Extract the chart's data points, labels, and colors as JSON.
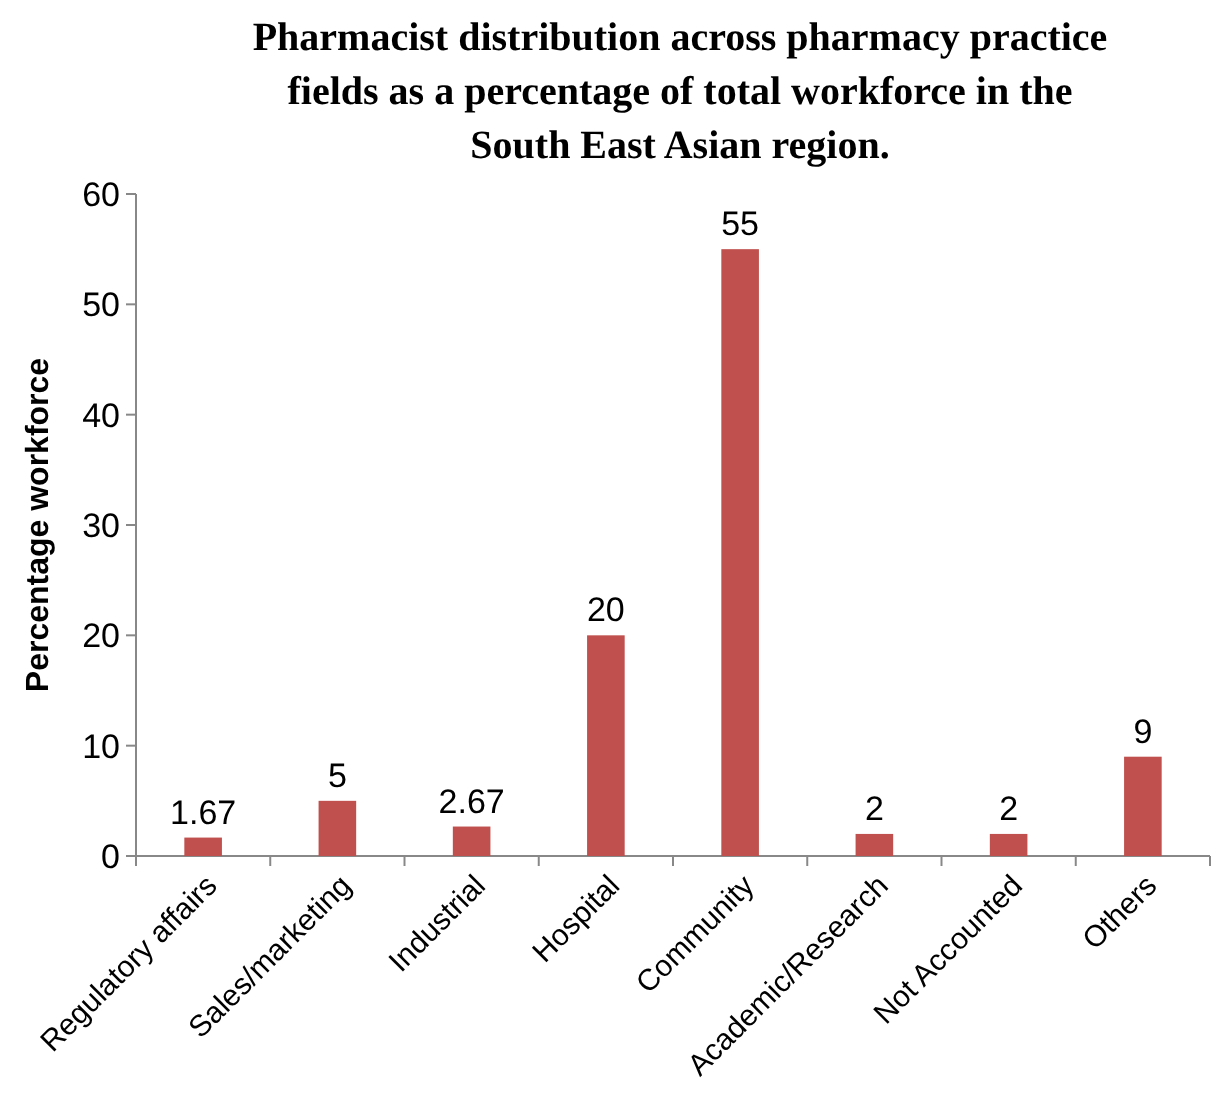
{
  "chart_data": {
    "type": "bar",
    "title": "Pharmacist distribution across pharmacy practice fields as a percentage of total workforce in the South East Asian region.",
    "ylabel": "Percentage workforce",
    "categories": [
      "Regulatory affairs",
      "Sales/marketing",
      "Industrial",
      "Hospital",
      "Community",
      "Academic/Research",
      "Not Accounted",
      "Others"
    ],
    "values": [
      1.67,
      5,
      2.67,
      20,
      55,
      2,
      2,
      9
    ],
    "color": "#c0504d",
    "ylim": [
      0,
      60
    ],
    "yticks": [
      0,
      10,
      20,
      30,
      40,
      50,
      60
    ],
    "data_labels": true
  }
}
